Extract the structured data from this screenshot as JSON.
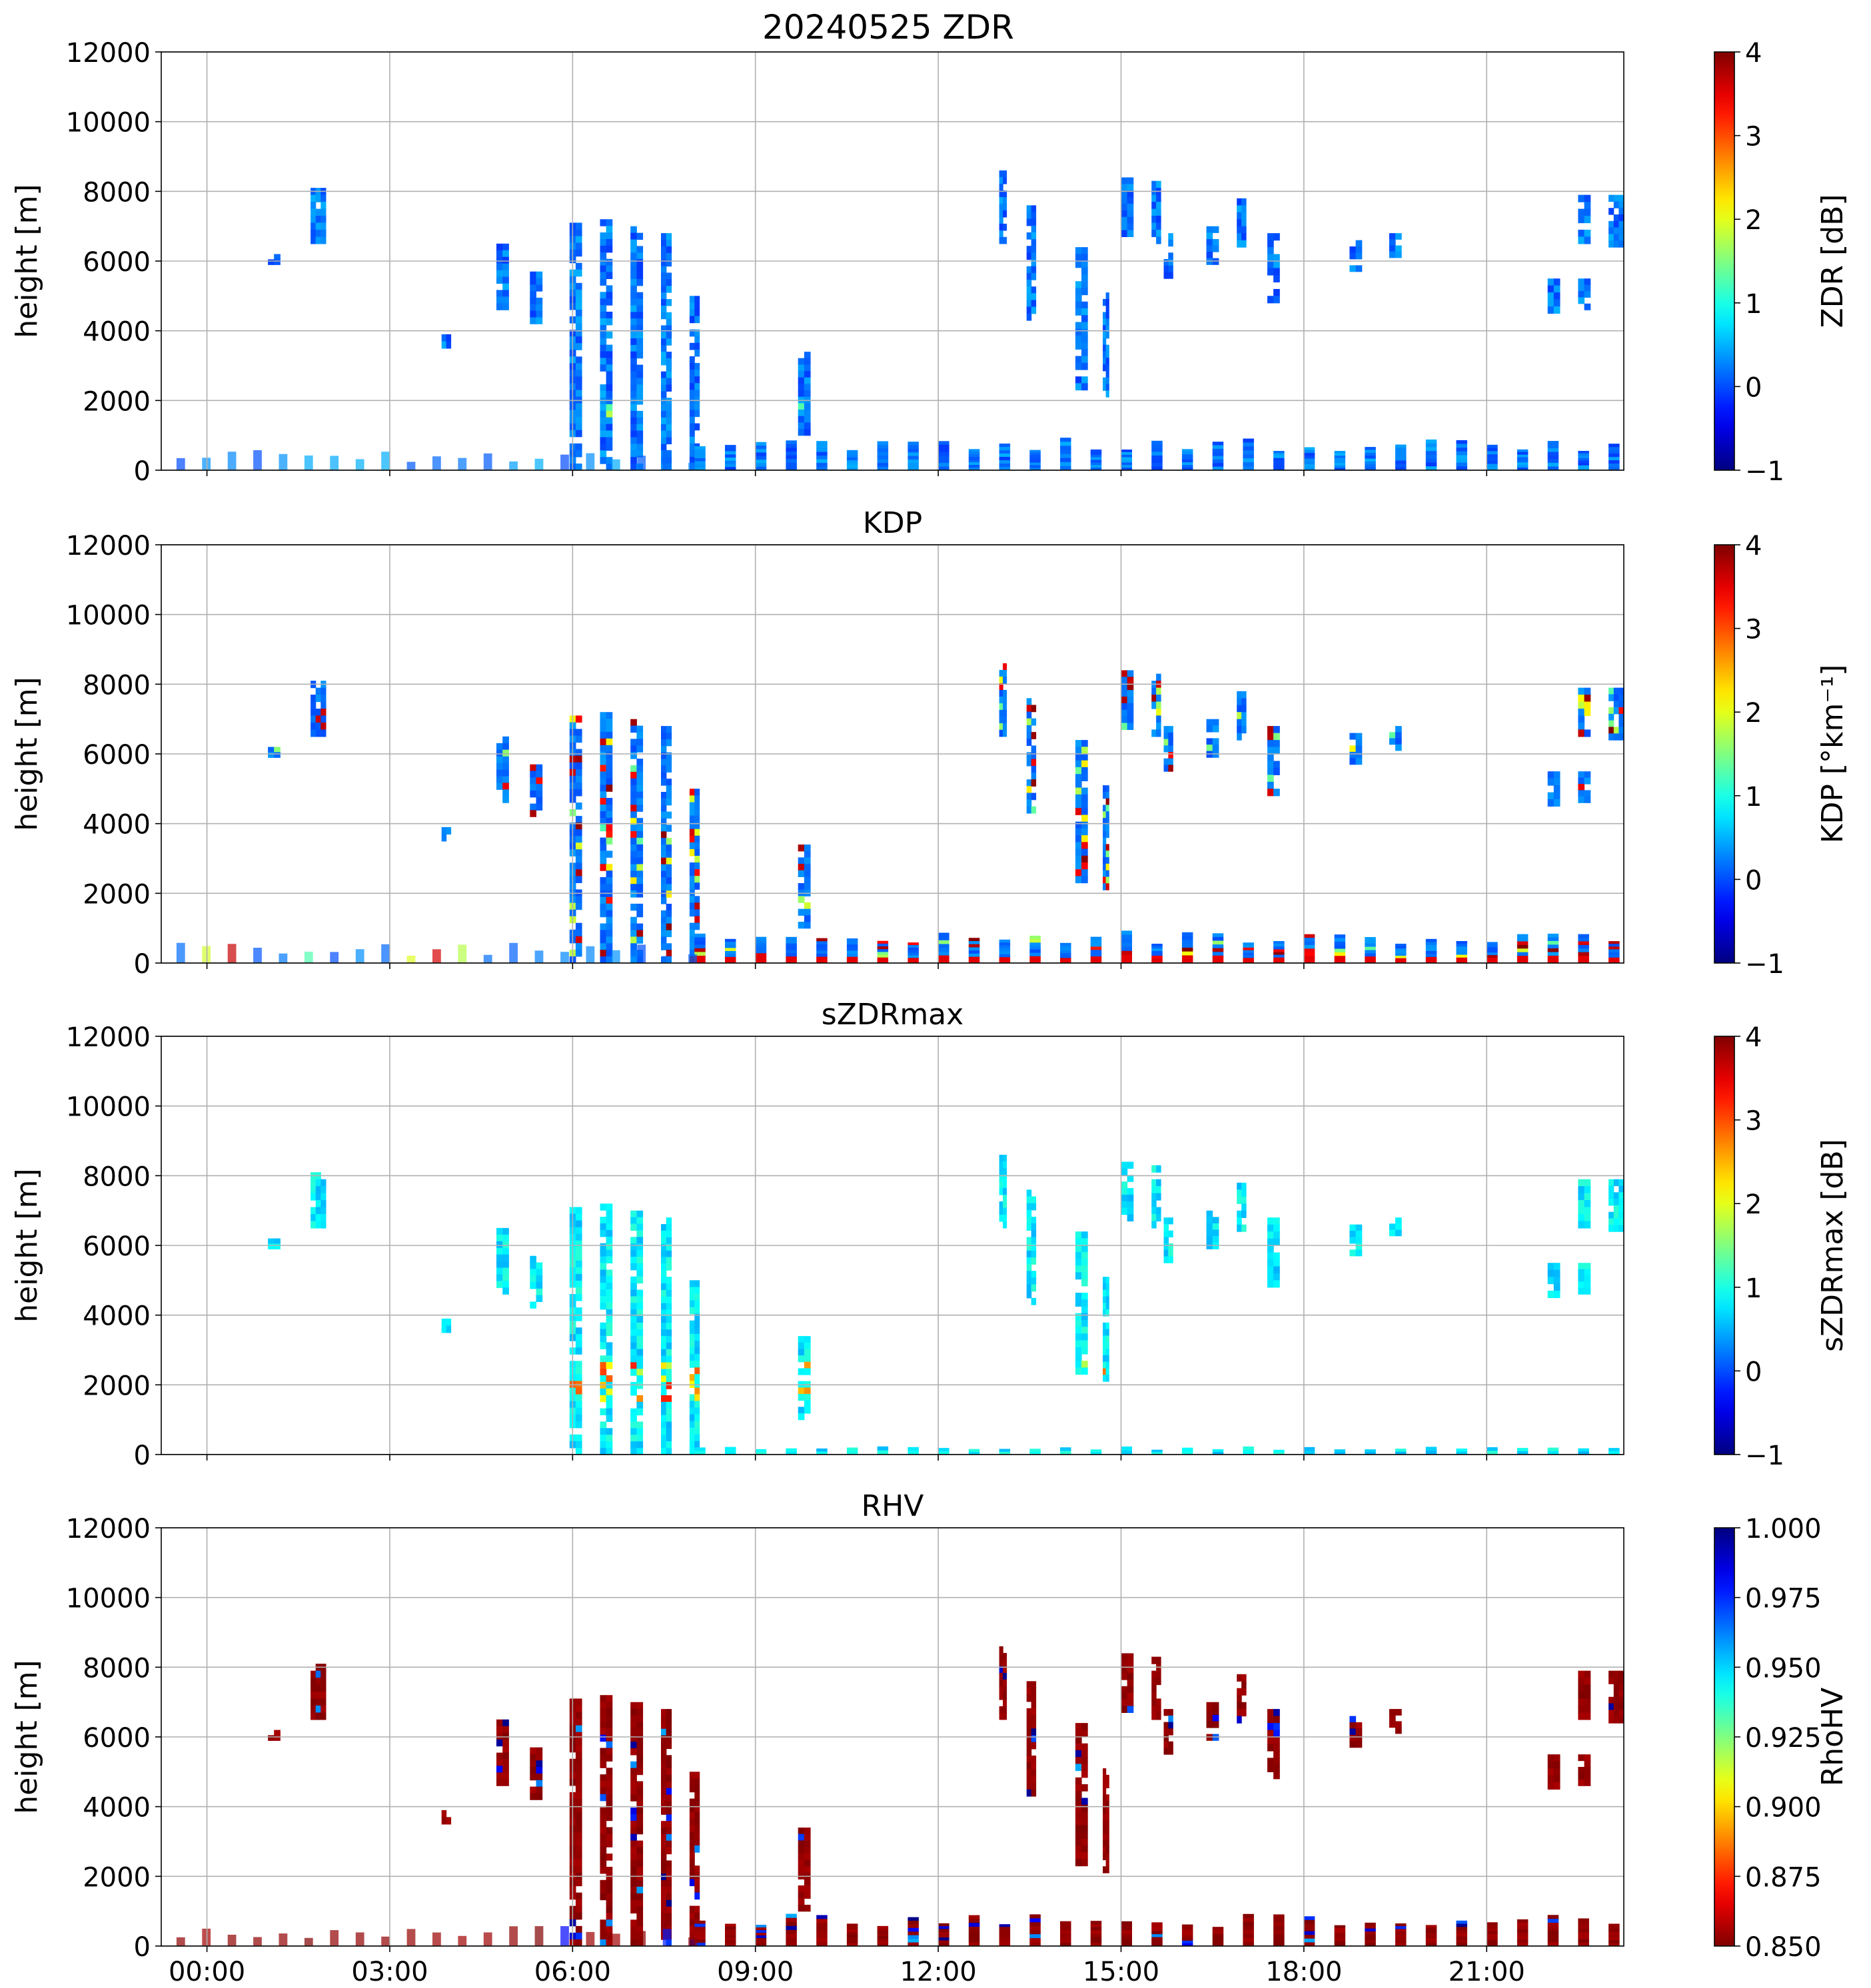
{
  "figure_title": "20240525 ZDR",
  "chart_data": [
    {
      "type": "heatmap",
      "id": "zdr",
      "title": "20240525 ZDR",
      "ylabel": "height [m]",
      "xlabel": "",
      "ylim": [
        0,
        12000
      ],
      "xlim_hours": [
        -0.75,
        23.25
      ],
      "yticks": [
        0,
        2000,
        4000,
        6000,
        8000,
        10000,
        12000
      ],
      "xticks_hours": [
        0,
        3,
        6,
        9,
        12,
        15,
        18,
        21
      ],
      "xtick_labels": [],
      "grid": true,
      "colorbar": {
        "label": "ZDR [dB]",
        "range": [
          -1,
          4
        ],
        "ticks": [
          -1,
          0,
          1,
          2,
          3,
          4
        ],
        "tick_labels": [
          "−1",
          "0",
          "1",
          "2",
          "3",
          "4"
        ],
        "reversed": false
      }
    },
    {
      "type": "heatmap",
      "id": "kdp",
      "title": "KDP",
      "ylabel": "height [m]",
      "xlabel": "",
      "ylim": [
        0,
        12000
      ],
      "xlim_hours": [
        -0.75,
        23.25
      ],
      "yticks": [
        0,
        2000,
        4000,
        6000,
        8000,
        10000,
        12000
      ],
      "xticks_hours": [
        0,
        3,
        6,
        9,
        12,
        15,
        18,
        21
      ],
      "xtick_labels": [],
      "grid": true,
      "colorbar": {
        "label": "KDP [°km⁻¹]",
        "range": [
          -1,
          4
        ],
        "ticks": [
          -1,
          0,
          1,
          2,
          3,
          4
        ],
        "tick_labels": [
          "−1",
          "0",
          "1",
          "2",
          "3",
          "4"
        ],
        "reversed": false
      }
    },
    {
      "type": "heatmap",
      "id": "szdrmax",
      "title": "sZDRmax",
      "ylabel": "height [m]",
      "xlabel": "",
      "ylim": [
        0,
        12000
      ],
      "xlim_hours": [
        -0.75,
        23.25
      ],
      "yticks": [
        0,
        2000,
        4000,
        6000,
        8000,
        10000,
        12000
      ],
      "xticks_hours": [
        0,
        3,
        6,
        9,
        12,
        15,
        18,
        21
      ],
      "xtick_labels": [],
      "grid": true,
      "colorbar": {
        "label": "sZDRmax [dB]",
        "range": [
          -1,
          4
        ],
        "ticks": [
          -1,
          0,
          1,
          2,
          3,
          4
        ],
        "tick_labels": [
          "−1",
          "0",
          "1",
          "2",
          "3",
          "4"
        ],
        "reversed": false
      }
    },
    {
      "type": "heatmap",
      "id": "rhv",
      "title": "RHV",
      "ylabel": "height [m]",
      "xlabel": "",
      "ylim": [
        0,
        12000
      ],
      "xlim_hours": [
        -0.75,
        23.25
      ],
      "yticks": [
        0,
        2000,
        4000,
        6000,
        8000,
        10000,
        12000
      ],
      "xticks_hours": [
        0,
        3,
        6,
        9,
        12,
        15,
        18,
        21
      ],
      "xtick_labels": [
        "00:00",
        "03:00",
        "06:00",
        "09:00",
        "12:00",
        "15:00",
        "18:00",
        "21:00"
      ],
      "grid": true,
      "colorbar": {
        "label": "RhoHV",
        "range": [
          0.85,
          1.0
        ],
        "ticks": [
          0.85,
          0.875,
          0.9,
          0.925,
          0.95,
          0.975,
          1.0
        ],
        "tick_labels": [
          "0.850",
          "0.875",
          "0.900",
          "0.925",
          "0.950",
          "0.975",
          "1.000"
        ],
        "reversed": true
      }
    }
  ],
  "echo_regions": [
    {
      "t0": 1.7,
      "t1": 1.95,
      "h0": 6500,
      "h1": 8100
    },
    {
      "t0": 1.0,
      "t1": 1.2,
      "h0": 5900,
      "h1": 6200
    },
    {
      "t0": 3.85,
      "t1": 4.0,
      "h0": 3500,
      "h1": 3900
    },
    {
      "t0": 4.75,
      "t1": 4.95,
      "h0": 4600,
      "h1": 6500
    },
    {
      "t0": 5.3,
      "t1": 5.5,
      "h0": 4200,
      "h1": 5700
    },
    {
      "t0": 5.95,
      "t1": 6.15,
      "h0": 0,
      "h1": 7100
    },
    {
      "t0": 6.45,
      "t1": 6.65,
      "h0": 0,
      "h1": 7200
    },
    {
      "t0": 6.95,
      "t1": 7.15,
      "h0": 0,
      "h1": 7000
    },
    {
      "t0": 7.45,
      "t1": 7.62,
      "h0": 0,
      "h1": 6800
    },
    {
      "t0": 7.92,
      "t1": 8.08,
      "h0": 0,
      "h1": 5000
    },
    {
      "t0": 9.7,
      "t1": 9.9,
      "h0": 1000,
      "h1": 3400
    },
    {
      "t0": 13.0,
      "t1": 13.12,
      "h0": 6500,
      "h1": 8600
    },
    {
      "t0": 13.45,
      "t1": 13.6,
      "h0": 4300,
      "h1": 7600
    },
    {
      "t0": 14.25,
      "t1": 14.45,
      "h0": 2300,
      "h1": 6400
    },
    {
      "t0": 14.7,
      "t1": 14.8,
      "h0": 2100,
      "h1": 5100
    },
    {
      "t0": 15.0,
      "t1": 15.2,
      "h0": 6700,
      "h1": 8400
    },
    {
      "t0": 15.5,
      "t1": 15.65,
      "h0": 6500,
      "h1": 8300
    },
    {
      "t0": 15.7,
      "t1": 15.85,
      "h0": 5500,
      "h1": 6800
    },
    {
      "t0": 16.4,
      "t1": 16.6,
      "h0": 5900,
      "h1": 7000
    },
    {
      "t0": 16.9,
      "t1": 17.05,
      "h0": 6400,
      "h1": 7800
    },
    {
      "t0": 17.4,
      "t1": 17.6,
      "h0": 4800,
      "h1": 6800
    },
    {
      "t0": 18.75,
      "t1": 18.95,
      "h0": 5700,
      "h1": 6600
    },
    {
      "t0": 19.4,
      "t1": 19.6,
      "h0": 6100,
      "h1": 6800
    },
    {
      "t0": 22.0,
      "t1": 22.2,
      "h0": 4500,
      "h1": 5500
    },
    {
      "t0": 22.5,
      "t1": 22.7,
      "h0": 4600,
      "h1": 5500
    },
    {
      "t0": 22.5,
      "t1": 22.7,
      "h0": 6500,
      "h1": 7900
    },
    {
      "t0": 23.0,
      "t1": 23.25,
      "h0": 6400,
      "h1": 7900
    }
  ]
}
